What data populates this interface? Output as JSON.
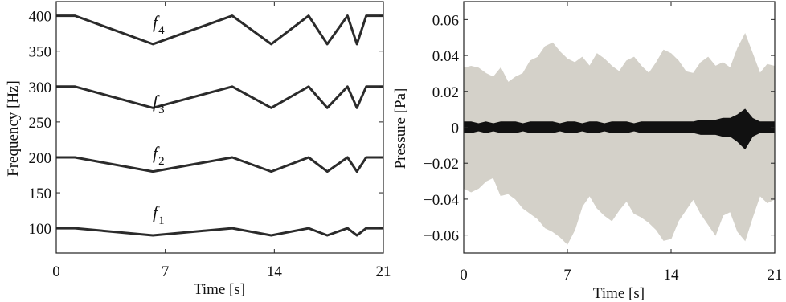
{
  "chart_data": [
    {
      "type": "line",
      "title": "",
      "xlabel": "Time [s]",
      "ylabel": "Frequency [Hz]",
      "xlim": [
        0,
        21
      ],
      "ylim": [
        65,
        420
      ],
      "xticks": [
        0,
        7,
        14,
        21
      ],
      "yticks": [
        100,
        150,
        200,
        250,
        300,
        350,
        400
      ],
      "grid": false,
      "line_color": "#2b2b2b",
      "series": [
        {
          "name": "f1",
          "label_main": "f",
          "label_sub": "1",
          "x": [
            0,
            1.2,
            6.2,
            11.3,
            13.8,
            16.2,
            17.4,
            18.7,
            19.3,
            19.9,
            21
          ],
          "y": [
            100,
            100,
            90,
            100,
            90,
            100,
            90,
            100,
            90,
            100,
            100
          ]
        },
        {
          "name": "f2",
          "label_main": "f",
          "label_sub": "2",
          "x": [
            0,
            1.2,
            6.2,
            11.3,
            13.8,
            16.2,
            17.4,
            18.7,
            19.3,
            19.9,
            21
          ],
          "y": [
            200,
            200,
            180,
            200,
            180,
            200,
            180,
            200,
            180,
            200,
            200
          ]
        },
        {
          "name": "f3",
          "label_main": "f",
          "label_sub": "3",
          "x": [
            0,
            1.2,
            6.2,
            11.3,
            13.8,
            16.2,
            17.4,
            18.7,
            19.3,
            19.9,
            21
          ],
          "y": [
            300,
            300,
            270,
            300,
            270,
            300,
            270,
            300,
            270,
            300,
            300
          ]
        },
        {
          "name": "f4",
          "label_main": "f",
          "label_sub": "4",
          "x": [
            0,
            1.2,
            6.2,
            11.3,
            13.8,
            16.2,
            17.4,
            18.7,
            19.3,
            19.9,
            21
          ],
          "y": [
            400,
            400,
            360,
            400,
            360,
            400,
            360,
            400,
            360,
            400,
            400
          ]
        }
      ]
    },
    {
      "type": "area",
      "title": "",
      "xlabel": "Time [s]",
      "ylabel": "Pressure [Pa]",
      "xlim": [
        0,
        21
      ],
      "ylim": [
        -0.07,
        0.07
      ],
      "xticks": [
        0,
        7,
        14,
        21
      ],
      "yticks": [
        -0.06,
        -0.04,
        -0.02,
        0,
        0.02,
        0.04,
        0.06
      ],
      "ytick_labels": [
        "−0.06",
        "−0.04",
        "−0.02",
        "0",
        "0.02",
        "0.04",
        "0.06"
      ],
      "grid": false,
      "series": [
        {
          "color": "#d4d1c9",
          "x": [
            0,
            0.5,
            1,
            1.5,
            2,
            2.5,
            3,
            3.5,
            4,
            4.5,
            5,
            5.5,
            6,
            6.5,
            7,
            7.5,
            8,
            8.5,
            9,
            9.5,
            10,
            10.5,
            11,
            11.5,
            12,
            12.5,
            13,
            13.5,
            14,
            14.5,
            15,
            15.5,
            16,
            16.5,
            17,
            17.5,
            18,
            18.5,
            19,
            19.5,
            20,
            20.5,
            21
          ],
          "upper": [
            0.033,
            0.034,
            0.033,
            0.03,
            0.028,
            0.033,
            0.025,
            0.028,
            0.03,
            0.037,
            0.039,
            0.045,
            0.047,
            0.042,
            0.038,
            0.036,
            0.039,
            0.034,
            0.041,
            0.038,
            0.034,
            0.031,
            0.037,
            0.039,
            0.034,
            0.03,
            0.036,
            0.043,
            0.041,
            0.037,
            0.031,
            0.03,
            0.036,
            0.039,
            0.034,
            0.036,
            0.033,
            0.044,
            0.052,
            0.041,
            0.03,
            0.035,
            0.034
          ],
          "lower": [
            -0.034,
            -0.036,
            -0.034,
            -0.03,
            -0.028,
            -0.038,
            -0.037,
            -0.04,
            -0.045,
            -0.048,
            -0.051,
            -0.056,
            -0.058,
            -0.061,
            -0.065,
            -0.057,
            -0.044,
            -0.038,
            -0.045,
            -0.049,
            -0.052,
            -0.046,
            -0.041,
            -0.048,
            -0.05,
            -0.053,
            -0.057,
            -0.063,
            -0.062,
            -0.052,
            -0.046,
            -0.04,
            -0.048,
            -0.054,
            -0.06,
            -0.049,
            -0.047,
            -0.058,
            -0.063,
            -0.05,
            -0.038,
            -0.042,
            -0.04
          ]
        },
        {
          "color": "#111111",
          "x": [
            0,
            0.5,
            1,
            1.5,
            2,
            2.5,
            3,
            3.5,
            4,
            4.5,
            5,
            5.5,
            6,
            6.5,
            7,
            7.5,
            8,
            8.5,
            9,
            9.5,
            10,
            10.5,
            11,
            11.5,
            12,
            12.5,
            13,
            13.5,
            14,
            14.5,
            15,
            15.5,
            16,
            16.5,
            17,
            17.5,
            18,
            18.5,
            19,
            19.5,
            20,
            20.5,
            21
          ],
          "upper": [
            0.003,
            0.003,
            0.002,
            0.003,
            0.002,
            0.003,
            0.003,
            0.003,
            0.002,
            0.003,
            0.003,
            0.003,
            0.003,
            0.002,
            0.003,
            0.003,
            0.002,
            0.003,
            0.003,
            0.002,
            0.003,
            0.003,
            0.003,
            0.002,
            0.003,
            0.003,
            0.003,
            0.003,
            0.003,
            0.003,
            0.003,
            0.003,
            0.004,
            0.004,
            0.004,
            0.005,
            0.005,
            0.007,
            0.01,
            0.005,
            0.003,
            0.003,
            0.003
          ],
          "lower": [
            -0.003,
            -0.003,
            -0.002,
            -0.003,
            -0.002,
            -0.003,
            -0.003,
            -0.003,
            -0.002,
            -0.003,
            -0.003,
            -0.003,
            -0.003,
            -0.002,
            -0.003,
            -0.003,
            -0.002,
            -0.003,
            -0.003,
            -0.002,
            -0.003,
            -0.003,
            -0.003,
            -0.002,
            -0.003,
            -0.003,
            -0.003,
            -0.003,
            -0.003,
            -0.003,
            -0.003,
            -0.003,
            -0.004,
            -0.004,
            -0.004,
            -0.005,
            -0.005,
            -0.008,
            -0.012,
            -0.005,
            -0.003,
            -0.003,
            -0.003
          ]
        }
      ]
    }
  ]
}
